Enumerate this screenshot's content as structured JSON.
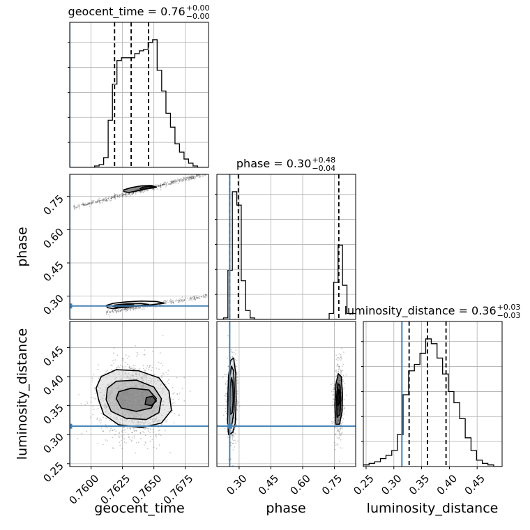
{
  "chart_data": {
    "type": "corner",
    "parameters": [
      "geocent_time",
      "phase",
      "luminosity_distance"
    ],
    "truth_color": "#4682b4",
    "grid": true,
    "titles": [
      {
        "parameter": "geocent_time",
        "prefix": "geocent_time = ",
        "median": "0.76",
        "plus": "+0.00",
        "minus": "−0.00"
      },
      {
        "parameter": "phase",
        "prefix": "phase = ",
        "median": "0.30",
        "plus": "+0.48",
        "minus": "−0.04"
      },
      {
        "parameter": "luminosity_distance",
        "prefix": "luminosity_distance = ",
        "median": "0.36",
        "plus": "+0.03",
        "minus": "−0.03"
      }
    ],
    "axes": {
      "geocent_time": {
        "range": [
          0.7583,
          0.76935
        ],
        "ticks": [
          0.76,
          0.7625,
          0.765,
          0.7675
        ],
        "tick_labels": [
          "0.7600",
          "0.7625",
          "0.7650",
          "0.7675"
        ],
        "truth": 0.7583
      },
      "phase": {
        "range": [
          0.195,
          0.85
        ],
        "ticks": [
          0.3,
          0.45,
          0.6,
          0.75
        ],
        "tick_labels": [
          "0.30",
          "0.45",
          "0.60",
          "0.75"
        ],
        "truth": 0.2555
      },
      "luminosity_distance": {
        "range": [
          0.245,
          0.495
        ],
        "ticks": [
          0.25,
          0.3,
          0.35,
          0.4,
          0.45
        ],
        "tick_labels": [
          "0.25",
          "0.30",
          "0.35",
          "0.40",
          "0.45"
        ],
        "truth": 0.3145
      }
    },
    "quantiles": {
      "geocent_time": [
        0.76187,
        0.76319,
        0.76458
      ],
      "phase": [
        0.2552,
        0.2962,
        0.7705
      ],
      "luminosity_distance": [
        0.3275,
        0.3605,
        0.394
      ]
    },
    "histograms": {
      "geocent_time": {
        "edges": [
          0.7583,
          0.76028,
          0.76064,
          0.761,
          0.76136,
          0.7617,
          0.76206,
          0.76242,
          0.76278,
          0.76312,
          0.76348,
          0.76384,
          0.76418,
          0.76454,
          0.7649,
          0.76526,
          0.76562,
          0.76596,
          0.76632,
          0.76668,
          0.76704,
          0.7674,
          0.76776,
          0.76812,
          0.76848,
          0.76884,
          0.76935
        ],
        "counts": [
          0,
          1,
          2,
          7,
          34,
          60,
          77,
          79,
          79,
          79,
          82,
          84,
          85,
          90,
          92,
          70,
          55,
          39,
          29,
          17,
          11,
          6,
          3,
          1,
          0,
          0
        ]
      },
      "phase": {
        "edges": [
          0.195,
          0.226,
          0.247,
          0.268,
          0.289,
          0.31,
          0.331,
          0.352,
          0.373,
          0.394,
          0.725,
          0.746,
          0.767,
          0.788,
          0.809,
          0.85
        ],
        "counts": [
          0,
          1,
          33,
          86,
          77,
          26,
          6,
          1,
          0,
          0,
          4,
          25,
          50,
          23,
          4
        ]
      },
      "luminosity_distance": {
        "edges": [
          0.245,
          0.2554,
          0.2654,
          0.2758,
          0.2858,
          0.2962,
          0.3062,
          0.3166,
          0.3266,
          0.337,
          0.347,
          0.3574,
          0.3674,
          0.3778,
          0.3878,
          0.3982,
          0.4082,
          0.4186,
          0.4286,
          0.439,
          0.449,
          0.4594,
          0.4694,
          0.4798,
          0.495
        ],
        "counts": [
          1,
          2,
          3,
          5,
          7,
          10,
          20,
          45,
          60,
          64,
          71,
          80,
          77,
          68,
          58,
          47,
          40,
          30,
          18,
          10,
          4,
          2,
          1,
          0
        ]
      }
    },
    "contours": {
      "phase_vs_geocent_time": [
        [
          [
            0.7618,
            0.243
          ],
          [
            0.7622,
            0.247
          ],
          [
            0.763,
            0.251
          ],
          [
            0.764,
            0.256
          ],
          [
            0.765,
            0.262
          ],
          [
            0.7658,
            0.268
          ],
          [
            0.7652,
            0.276
          ],
          [
            0.764,
            0.278
          ],
          [
            0.7628,
            0.274
          ],
          [
            0.7618,
            0.268
          ],
          [
            0.7612,
            0.258
          ],
          [
            0.7613,
            0.248
          ]
        ],
        [
          [
            0.762,
            0.25
          ],
          [
            0.7628,
            0.254
          ],
          [
            0.7638,
            0.258
          ],
          [
            0.7646,
            0.262
          ],
          [
            0.764,
            0.267
          ],
          [
            0.7628,
            0.265
          ],
          [
            0.7619,
            0.26
          ],
          [
            0.7617,
            0.254
          ]
        ],
        [
          [
            0.7621,
            0.256
          ],
          [
            0.7629,
            0.257
          ],
          [
            0.7634,
            0.26
          ],
          [
            0.7628,
            0.262
          ],
          [
            0.762,
            0.26
          ]
        ],
        [
          [
            0.763,
            0.768
          ],
          [
            0.7638,
            0.777
          ],
          [
            0.7645,
            0.786
          ],
          [
            0.7652,
            0.792
          ],
          [
            0.7648,
            0.8
          ],
          [
            0.764,
            0.798
          ],
          [
            0.7632,
            0.79
          ],
          [
            0.7626,
            0.78
          ],
          [
            0.7626,
            0.772
          ]
        ],
        [
          [
            0.764,
            0.782
          ],
          [
            0.7646,
            0.786
          ],
          [
            0.765,
            0.792
          ],
          [
            0.7646,
            0.796
          ],
          [
            0.7641,
            0.792
          ],
          [
            0.7639,
            0.786
          ]
        ]
      ],
      "luminosity_distance_vs_geocent_time": [
        [
          [
            0.7606,
            0.36
          ],
          [
            0.761,
            0.335
          ],
          [
            0.7622,
            0.317
          ],
          [
            0.764,
            0.312
          ],
          [
            0.7656,
            0.32
          ],
          [
            0.7664,
            0.342
          ],
          [
            0.7662,
            0.375
          ],
          [
            0.7654,
            0.398
          ],
          [
            0.7638,
            0.41
          ],
          [
            0.762,
            0.412
          ],
          [
            0.7608,
            0.4
          ],
          [
            0.7604,
            0.38
          ]
        ],
        [
          [
            0.7612,
            0.36
          ],
          [
            0.7616,
            0.34
          ],
          [
            0.7628,
            0.328
          ],
          [
            0.7644,
            0.326
          ],
          [
            0.7654,
            0.338
          ],
          [
            0.7656,
            0.362
          ],
          [
            0.765,
            0.382
          ],
          [
            0.7636,
            0.394
          ],
          [
            0.762,
            0.392
          ],
          [
            0.7613,
            0.38
          ]
        ],
        [
          [
            0.762,
            0.362
          ],
          [
            0.7624,
            0.346
          ],
          [
            0.7636,
            0.34
          ],
          [
            0.7648,
            0.346
          ],
          [
            0.7652,
            0.362
          ],
          [
            0.7646,
            0.377
          ],
          [
            0.7632,
            0.38
          ],
          [
            0.7622,
            0.374
          ]
        ],
        [
          [
            0.7643,
            0.352
          ],
          [
            0.7648,
            0.35
          ],
          [
            0.7652,
            0.358
          ],
          [
            0.7649,
            0.366
          ],
          [
            0.7644,
            0.364
          ]
        ]
      ],
      "luminosity_distance_vs_phase": [
        [
          [
            0.25,
            0.3
          ],
          [
            0.27,
            0.304
          ],
          [
            0.282,
            0.32
          ],
          [
            0.286,
            0.36
          ],
          [
            0.284,
            0.405
          ],
          [
            0.274,
            0.432
          ],
          [
            0.26,
            0.428
          ],
          [
            0.25,
            0.4
          ],
          [
            0.246,
            0.36
          ],
          [
            0.246,
            0.32
          ]
        ],
        [
          [
            0.254,
            0.318
          ],
          [
            0.266,
            0.318
          ],
          [
            0.276,
            0.34
          ],
          [
            0.278,
            0.375
          ],
          [
            0.274,
            0.41
          ],
          [
            0.264,
            0.418
          ],
          [
            0.256,
            0.4
          ],
          [
            0.252,
            0.36
          ]
        ],
        [
          [
            0.26,
            0.335
          ],
          [
            0.268,
            0.338
          ],
          [
            0.272,
            0.36
          ],
          [
            0.27,
            0.39
          ],
          [
            0.264,
            0.398
          ],
          [
            0.258,
            0.38
          ],
          [
            0.257,
            0.35
          ]
        ],
        [
          [
            0.756,
            0.318
          ],
          [
            0.774,
            0.318
          ],
          [
            0.786,
            0.34
          ],
          [
            0.788,
            0.37
          ],
          [
            0.782,
            0.4
          ],
          [
            0.768,
            0.405
          ],
          [
            0.756,
            0.386
          ],
          [
            0.752,
            0.35
          ]
        ],
        [
          [
            0.762,
            0.33
          ],
          [
            0.776,
            0.335
          ],
          [
            0.78,
            0.36
          ],
          [
            0.776,
            0.385
          ],
          [
            0.766,
            0.388
          ],
          [
            0.76,
            0.365
          ]
        ],
        [
          [
            0.767,
            0.35
          ],
          [
            0.774,
            0.355
          ],
          [
            0.775,
            0.37
          ],
          [
            0.77,
            0.378
          ],
          [
            0.766,
            0.365
          ]
        ]
      ]
    }
  }
}
